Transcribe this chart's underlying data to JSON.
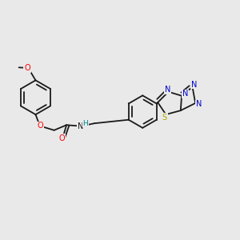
{
  "bg_color": "#e9e9e9",
  "bond_color": "#1a1a1a",
  "bond_width": 1.3,
  "atom_bg": "#e9e9e9",
  "colors": {
    "O": "#ff0000",
    "N": "#0000cc",
    "S": "#aaaa00",
    "NH_H": "#008888",
    "C": "#1a1a1a"
  },
  "font_size": 7.5
}
